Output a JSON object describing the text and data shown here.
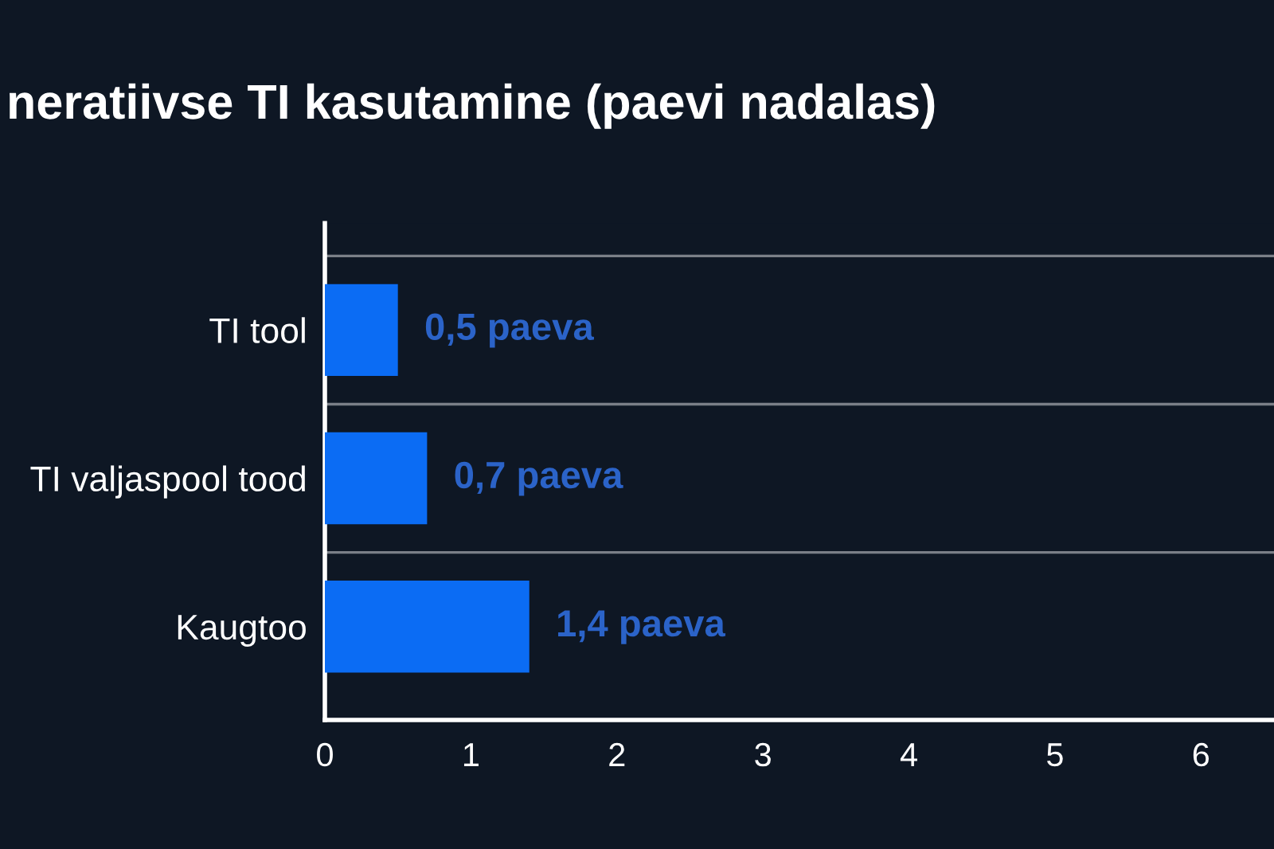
{
  "chart_data": {
    "type": "bar",
    "orientation": "horizontal",
    "title": "neratiivse TI kasutamine (paevi nadalas)",
    "categories": [
      "TI tool",
      "TI valjaspool tood",
      "Kaugtoo"
    ],
    "values": [
      0.5,
      0.7,
      1.4
    ],
    "value_labels": [
      "0,5 paeva",
      "0,7 paeva",
      "1,4 paeva"
    ],
    "color": "#0b6cf4",
    "xlim": [
      0,
      6.5
    ],
    "xticks": [
      0,
      1,
      2,
      3,
      4,
      5,
      6
    ],
    "grid": "y",
    "legend": false
  }
}
